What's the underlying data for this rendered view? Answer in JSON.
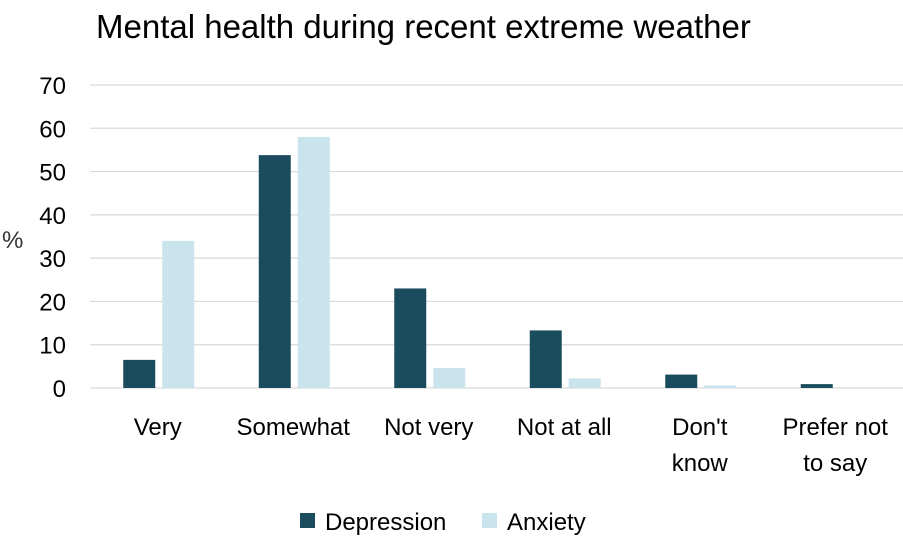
{
  "chart_data": {
    "type": "bar",
    "title": "Mental health during recent extreme weather",
    "ylabel": "%",
    "xlabel": "",
    "ylim": [
      0,
      70
    ],
    "yticks": [
      0,
      10,
      20,
      30,
      40,
      50,
      60,
      70
    ],
    "grid": true,
    "legend_position": "bottom",
    "categories": [
      [
        "Very"
      ],
      [
        "Somewhat"
      ],
      [
        "Not very"
      ],
      [
        "Not at all"
      ],
      [
        "Don't",
        "know"
      ],
      [
        "Prefer not",
        "to say"
      ]
    ],
    "series": [
      {
        "name": "Depression",
        "color": "#1b4c5e",
        "values": [
          6.5,
          53.8,
          23.0,
          13.3,
          3.1,
          0.9
        ]
      },
      {
        "name": "Anxiety",
        "color": "#c9e4ec",
        "values": [
          34.0,
          58.0,
          4.6,
          2.2,
          0.6,
          0.1
        ]
      }
    ]
  }
}
